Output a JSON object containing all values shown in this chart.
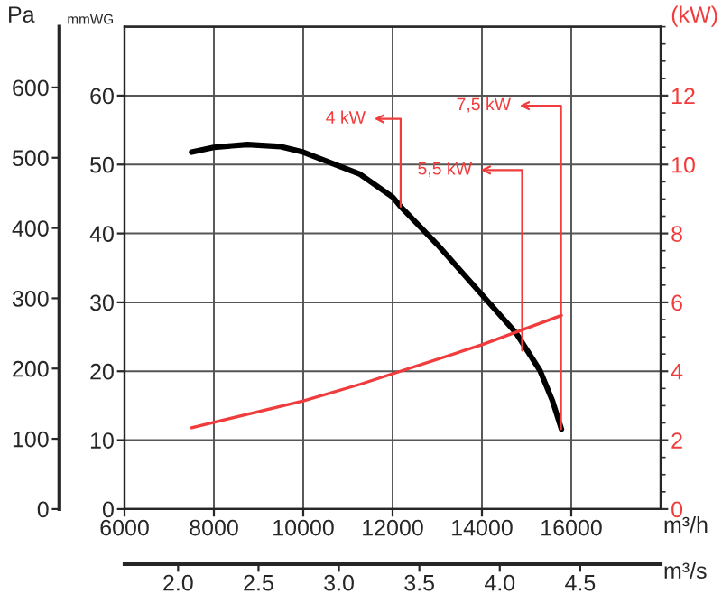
{
  "chart_data": {
    "type": "line",
    "xlabel": "m³/h",
    "ylabel": "mmWG",
    "y2label": "(kW)",
    "y3label": "Pa",
    "x2label": "m³/s",
    "x": [
      7500,
      8000,
      8750,
      9500,
      10000,
      11270,
      12000,
      12180,
      13000,
      14000,
      14770,
      15300,
      15580,
      15780
    ],
    "series": [
      {
        "color": "#000000",
        "values": [
          51.8,
          52.5,
          52.9,
          52.6,
          51.8,
          48.6,
          45.3,
          43.9,
          38.4,
          31.1,
          25.5,
          20.1,
          15.7,
          11.6
        ]
      },
      {
        "color": "#f03c3c",
        "axis": "y2",
        "x": [
          7500,
          10000,
          11270,
          14000,
          15780
        ],
        "values": [
          2.36,
          3.14,
          3.62,
          4.77,
          5.62
        ]
      }
    ],
    "xlim": [
      6000,
      18000
    ],
    "xticks": [
      6000,
      8000,
      10000,
      12000,
      14000,
      16000
    ],
    "ylim": [
      0,
      70
    ],
    "yticks": [
      0,
      10,
      20,
      30,
      40,
      50,
      60
    ],
    "y2lim": [
      0,
      14
    ],
    "y2ticks": [
      0,
      2,
      4,
      6,
      8,
      10,
      12
    ],
    "y3lim": [
      0,
      686.5
    ],
    "y3ticks": [
      0,
      100,
      200,
      300,
      400,
      500,
      600
    ],
    "x2lim": [
      1.667,
      5.0
    ],
    "x2ticks": [
      {
        "value": 2,
        "label": "2.0"
      },
      2.5,
      {
        "value": 3,
        "label": "3.0"
      },
      3.5,
      {
        "value": 4,
        "label": "4.0"
      },
      4.5
    ],
    "annotations": [
      {
        "text": "4 kW",
        "x": 12180,
        "y": 43.9
      },
      {
        "text": "5,5 kW",
        "x": 14900,
        "y": 23.0
      },
      {
        "text": "7,5 kW",
        "x": 15770,
        "y": 11.6
      }
    ],
    "grid": true,
    "legend": false,
    "marker": "none",
    "line_style": "solid"
  }
}
